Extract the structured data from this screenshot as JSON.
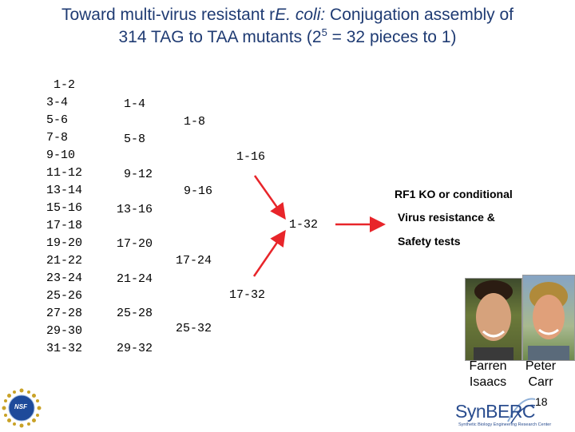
{
  "title": {
    "line1_pre": "Toward multi-virus resistant  r",
    "line1_italic": "E. coli:",
    "line1_post": " Conjugation assembly of",
    "line2_pre": "314 TAG to TAA  mutants (2",
    "line2_sup": "5",
    "line2_post": " = 32 pieces to 1)"
  },
  "col1": [
    "1-2",
    "3-4",
    "5-6",
    "7-8",
    "9-10",
    "11-12",
    "13-14",
    "15-16",
    "17-18",
    "19-20",
    "21-22",
    "23-24",
    "25-26",
    "27-28",
    "29-30",
    "31-32"
  ],
  "col2": [
    "1-4",
    "5-8",
    "9-12",
    "13-16",
    "17-20",
    "21-24",
    "25-28",
    "29-32"
  ],
  "col3": [
    "1-8",
    "9-16",
    "17-24",
    "25-32"
  ],
  "col4": [
    "1-16",
    "17-32"
  ],
  "col5": [
    "1-32"
  ],
  "outcomes": [
    "RF1 KO or conditional",
    "Virus resistance &",
    "Safety tests"
  ],
  "people": {
    "p1_first": "Farren",
    "p1_last": "Isaacs",
    "p2_first": "Peter",
    "p2_last": "Carr"
  },
  "page_number": "18",
  "logos": {
    "nsf": "NSF",
    "synberc": "SynBERC",
    "synberc_tagline": "Synthetic Biology Engineering Research Center"
  },
  "colors": {
    "title": "#1f3b73",
    "arrow": "#e8252a",
    "synberc": "#2a4d8f"
  }
}
